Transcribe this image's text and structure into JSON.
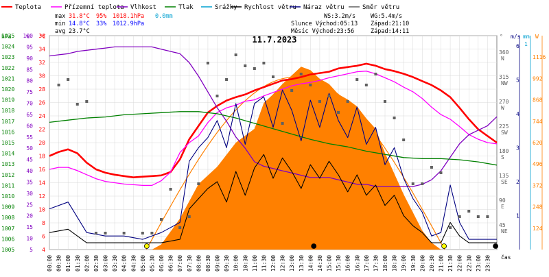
{
  "title": "11.7.2023",
  "legend": [
    {
      "label": "Teplota",
      "color": "#ff0000"
    },
    {
      "label": "Přízemní teplota",
      "color": "#ff00ff"
    },
    {
      "label": "Vlhkost",
      "color": "#8000c0"
    },
    {
      "label": "Tlak",
      "color": "#008000"
    },
    {
      "label": "Srážky",
      "color": "#00a0d0"
    },
    {
      "label": "Rychlost větru",
      "color": "#000000"
    },
    {
      "label": "Náraz větru",
      "color": "#000080"
    },
    {
      "label": "Směr větru",
      "color": "#606060"
    }
  ],
  "stats": {
    "max_label": "max",
    "max_temp": "31.8°C",
    "max_hum": "95%",
    "max_press": "1018.1hPa",
    "rain": "0.0mm",
    "min_label": "min",
    "min_temp": "14.8°C",
    "min_hum": "33%",
    "min_press": "1012.9hPa",
    "avg_label": "avg",
    "avg_temp": "23.7°C",
    "ws": "WS:3.2m/s",
    "wg": "WG:5.4m/s",
    "sun": "Slunce Východ:05:13",
    "sun_set": "Západ:21:10",
    "moon": "Měsíc  Východ:23:56",
    "moon_set": "Západ:14:11"
  },
  "axes": {
    "hpa_label": "hPa",
    "pct_label": "%",
    "c_label": "°C",
    "deg_label": "°",
    "ms_label": "m/s",
    "mm_label": "mm",
    "w_label": "W",
    "time_label": "čas",
    "hpa_ticks": [
      "1025",
      "1024",
      "1023",
      "1022",
      "1021",
      "1020",
      "1019",
      "1018",
      "1017",
      "1016",
      "1015",
      "1014",
      "1013",
      "1012",
      "1011",
      "1010",
      "1009",
      "1008",
      "1007",
      "1006",
      "1005"
    ],
    "pct_ticks": [
      "100",
      "95",
      "90",
      "85",
      "80",
      "75",
      "70",
      "65",
      "60",
      "55",
      "50",
      "45",
      "40",
      "35",
      "30",
      "25",
      "20",
      "15",
      "10",
      "5"
    ],
    "c_ticks": [
      "36",
      "34",
      "32",
      "30",
      "28",
      "26",
      "24",
      "22",
      "20",
      "18",
      "16",
      "14",
      "12",
      "10",
      "8",
      "6",
      "4"
    ],
    "dir_ticks": [
      "360\nN",
      "315\nNW",
      "270\nW",
      "225\nSW",
      "180\nS",
      "135\nSE",
      "90\nE",
      "45\nNE"
    ],
    "ms_ticks": [
      "6",
      "5",
      "4",
      "3",
      "2",
      "1"
    ],
    "mm_ticks": [
      "1"
    ],
    "w_ticks": [
      "1116",
      "992",
      "868",
      "744",
      "620",
      "496",
      "372",
      "248",
      "124"
    ],
    "time_ticks": [
      "00:00",
      "00:30",
      "01:00",
      "01:30",
      "02:00",
      "02:30",
      "03:00",
      "03:30",
      "04:00",
      "04:30",
      "05:00",
      "05:30",
      "06:00",
      "06:30",
      "07:00",
      "07:30",
      "08:00",
      "08:30",
      "09:00",
      "09:30",
      "10:00",
      "10:30",
      "11:00",
      "11:30",
      "12:00",
      "12:30",
      "13:00",
      "13:30",
      "14:00",
      "14:30",
      "15:00",
      "15:30",
      "16:00",
      "16:30",
      "17:00",
      "17:30",
      "18:00",
      "18:30",
      "19:00",
      "19:30",
      "20:00",
      "20:30",
      "21:00",
      "21:30",
      "22:00",
      "22:30",
      "23:00",
      "23:30"
    ]
  },
  "chart_data": {
    "type": "line",
    "x_unit": "hour of day",
    "xlim": [
      0,
      24
    ],
    "series": [
      {
        "name": "Teplota",
        "unit": "°C",
        "color": "#ff0000",
        "x": [
          0,
          0.5,
          1,
          1.5,
          2,
          2.5,
          3,
          3.5,
          4,
          4.5,
          5,
          5.5,
          6,
          6.5,
          7,
          7.5,
          8,
          8.5,
          9,
          9.5,
          10,
          10.5,
          11,
          11.5,
          12,
          12.5,
          13,
          13.5,
          14,
          14.5,
          15,
          15.5,
          16,
          16.5,
          17,
          17.5,
          18,
          18.5,
          19,
          19.5,
          20,
          20.5,
          21,
          21.5,
          22,
          22.5,
          23,
          23.5,
          24
        ],
        "y": [
          18,
          18.6,
          19,
          18.4,
          17,
          16,
          15.5,
          15.2,
          15,
          14.8,
          14.9,
          15,
          15.1,
          15.6,
          17.5,
          20.5,
          22.5,
          24.5,
          25.5,
          26.3,
          26.8,
          27.2,
          27.8,
          28.3,
          28.8,
          29.3,
          29.5,
          29.8,
          30.2,
          30.4,
          30.6,
          31.1,
          31.3,
          31.5,
          31.8,
          31.5,
          31,
          30.7,
          30.3,
          29.8,
          29.2,
          28.6,
          27.8,
          26.8,
          25.2,
          23.5,
          22,
          21,
          20
        ]
      },
      {
        "name": "Přízemní teplota",
        "unit": "°C",
        "color": "#ff00ff",
        "x": [
          0,
          0.5,
          1,
          1.5,
          2,
          2.5,
          3,
          3.5,
          4,
          4.5,
          5,
          5.5,
          6,
          6.5,
          7,
          7.5,
          8,
          8.5,
          9,
          9.5,
          10,
          10.5,
          11,
          11.5,
          12,
          12.5,
          13,
          13.5,
          14,
          14.5,
          15,
          15.5,
          16,
          16.5,
          17,
          17.5,
          18,
          18.5,
          19,
          19.5,
          20,
          20.5,
          21,
          21.5,
          22,
          22.5,
          23,
          23.5,
          24
        ],
        "y": [
          16,
          16.3,
          16.3,
          15.8,
          15.2,
          14.6,
          14.2,
          14,
          13.8,
          13.7,
          13.6,
          13.6,
          14.3,
          15.6,
          18.5,
          20,
          21,
          23,
          24.5,
          25.2,
          25.6,
          26.2,
          26.4,
          27,
          27.5,
          28,
          28.5,
          28.8,
          29,
          29.3,
          29.7,
          30,
          30.3,
          30.6,
          30.7,
          30.3,
          29.7,
          29.1,
          28.3,
          27.6,
          26.6,
          25.3,
          24.2,
          23.5,
          22.4,
          21.2,
          20.5,
          20,
          19.8
        ]
      },
      {
        "name": "Vlhkost",
        "unit": "%",
        "color": "#8000c0",
        "x": [
          0,
          0.5,
          1,
          1.5,
          2,
          2.5,
          3,
          3.5,
          4,
          4.5,
          5,
          5.5,
          6,
          6.5,
          7,
          7.5,
          8,
          8.5,
          9,
          9.5,
          10,
          10.5,
          11,
          11.5,
          12,
          12.5,
          13,
          13.5,
          14,
          14.5,
          15,
          15.5,
          16,
          16.5,
          17,
          17.5,
          18,
          18.5,
          19,
          19.5,
          20,
          20.5,
          21,
          21.5,
          22,
          22.5,
          23,
          23.5,
          24
        ],
        "y": [
          91,
          91.5,
          92,
          93,
          93.5,
          94,
          94.5,
          95,
          95,
          95,
          95,
          95,
          94,
          93,
          92,
          88,
          82,
          75,
          68,
          62,
          55,
          50,
          44,
          42,
          41,
          40,
          39,
          38,
          37,
          37,
          37,
          36,
          35,
          34,
          34,
          33,
          33,
          33,
          33,
          33,
          34,
          36,
          40,
          46,
          52,
          56,
          58,
          60,
          64
        ]
      },
      {
        "name": "Tlak",
        "unit": "hPa",
        "color": "#008000",
        "x": [
          0,
          1,
          2,
          3,
          4,
          5,
          6,
          7,
          8,
          9,
          10,
          11,
          12,
          13,
          14,
          15,
          16,
          17,
          18,
          19,
          20,
          21,
          22,
          23,
          24
        ],
        "y": [
          1016.9,
          1017.1,
          1017.3,
          1017.4,
          1017.6,
          1017.7,
          1017.8,
          1017.9,
          1017.9,
          1017.7,
          1017.3,
          1016.8,
          1016.3,
          1015.8,
          1015.3,
          1014.9,
          1014.6,
          1014.2,
          1013.9,
          1013.6,
          1013.5,
          1013.5,
          1013.4,
          1013.2,
          1012.9
        ]
      },
      {
        "name": "Rychlost větru",
        "unit": "m/s",
        "color": "#000000",
        "x": [
          0,
          1,
          2,
          3,
          4,
          5,
          6,
          7,
          7.5,
          8,
          8.5,
          9,
          9.5,
          10,
          10.5,
          11,
          11.5,
          12,
          12.5,
          13,
          13.5,
          14,
          14.5,
          15,
          15.5,
          16,
          16.5,
          17,
          17.5,
          18,
          18.5,
          19,
          19.5,
          20,
          20.5,
          21,
          21.5,
          22,
          22.5,
          23,
          24
        ],
        "y": [
          0.5,
          0.6,
          0.2,
          0.2,
          0.2,
          0.2,
          0.2,
          0.3,
          1.2,
          1.5,
          1.8,
          2,
          1.4,
          2.3,
          1.6,
          2.4,
          2.8,
          2.1,
          2.7,
          2.3,
          1.8,
          2.5,
          2.1,
          2.6,
          2.2,
          1.7,
          2.2,
          1.6,
          1.9,
          1.3,
          1.6,
          1,
          0.7,
          0.5,
          0.2,
          0.2,
          0.8,
          0.4,
          0.2,
          0.2,
          0.2
        ]
      },
      {
        "name": "Náraz větru",
        "unit": "m/s",
        "color": "#000080",
        "x": [
          0,
          1,
          2,
          3,
          4,
          5,
          6,
          7,
          7.5,
          8,
          8.5,
          9,
          9.5,
          10,
          10.5,
          11,
          11.5,
          12,
          12.5,
          13,
          13.5,
          14,
          14.5,
          15,
          15.5,
          16,
          16.5,
          17,
          17.5,
          18,
          18.5,
          19,
          19.5,
          20,
          20.5,
          21,
          21.5,
          22,
          22.5,
          23,
          24
        ],
        "y": [
          1.2,
          1.4,
          0.5,
          0.4,
          0.4,
          0.3,
          0.5,
          0.8,
          2.6,
          3,
          3.3,
          3.8,
          3,
          4.3,
          3.1,
          4.3,
          4.5,
          3.6,
          4.7,
          4.1,
          3.2,
          4.4,
          3.6,
          4.6,
          3.8,
          3.3,
          4.2,
          3.1,
          3.6,
          2.5,
          3,
          2.1,
          1.5,
          1.1,
          0.4,
          0.5,
          1.9,
          0.8,
          0.3,
          0.3,
          0.3
        ]
      },
      {
        "name": "Slunce",
        "unit": "W",
        "color": "#ff8000",
        "x": [
          5.5,
          6,
          7,
          8,
          9,
          10,
          11,
          11.5,
          12,
          12.5,
          13,
          13.5,
          14,
          14.5,
          15,
          15.5,
          16,
          16.5,
          17,
          17.5,
          18,
          19,
          20,
          20.5,
          21
        ],
        "y": [
          0,
          30,
          180,
          380,
          480,
          620,
          700,
          850,
          900,
          960,
          1010,
          1060,
          1040,
          990,
          960,
          900,
          870,
          830,
          760,
          700,
          560,
          320,
          110,
          40,
          0
        ]
      }
    ],
    "wind_direction_deg": {
      "x": [
        0.5,
        1,
        1.5,
        2,
        2.5,
        3,
        4,
        5,
        5.5,
        6,
        6.5,
        7,
        7.5,
        8,
        8.5,
        9,
        9.5,
        10,
        10.5,
        11,
        11.5,
        12,
        12.5,
        13,
        13.5,
        14,
        14.5,
        15,
        15.5,
        16,
        16.5,
        17,
        17.5,
        18,
        18.5,
        19,
        19.5,
        20,
        20.5,
        21,
        21.5,
        22,
        22.5,
        23,
        23.5
      ],
      "y": [
        300,
        310,
        265,
        270,
        30,
        30,
        30,
        30,
        30,
        55,
        110,
        40,
        60,
        120,
        340,
        280,
        310,
        355,
        335,
        330,
        340,
        315,
        230,
        290,
        320,
        300,
        270,
        280,
        250,
        270,
        310,
        300,
        320,
        270,
        240,
        200,
        120,
        120,
        150,
        140,
        40,
        60,
        70,
        60,
        60
      ]
    }
  }
}
